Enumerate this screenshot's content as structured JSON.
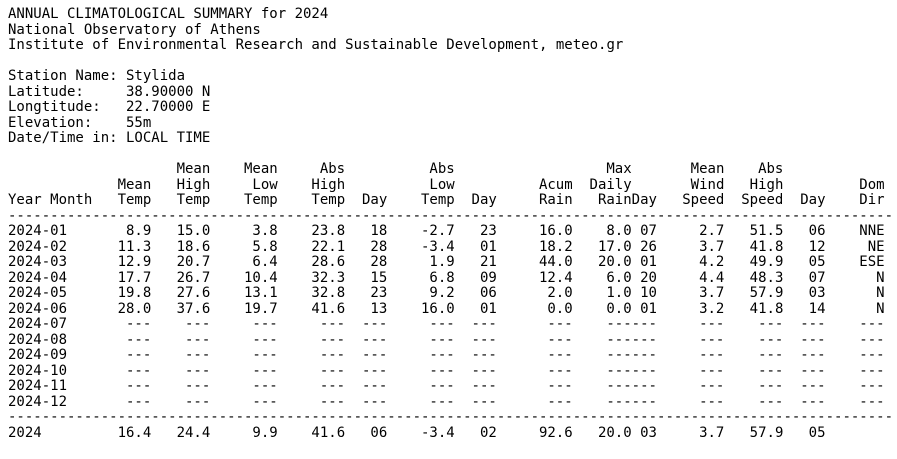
{
  "report": {
    "title": "ANNUAL CLIMATOLOGICAL SUMMARY for 2024",
    "organization": "National Observatory of Athens",
    "institute": "Institute of Environmental Research and Sustainable Development, meteo.gr"
  },
  "station": {
    "rows": [
      {
        "label": "Station Name:",
        "value": "Stylida"
      },
      {
        "label": "Latitude:",
        "value": "38.90000 N"
      },
      {
        "label": "Longtitude:",
        "value": "22.70000 E"
      },
      {
        "label": "Elevation:",
        "value": "55m"
      },
      {
        "label": "Date/Time in:",
        "value": "LOCAL TIME"
      }
    ]
  },
  "table": {
    "header": {
      "row1": [
        "",
        "",
        "Mean",
        "Mean",
        "Abs",
        "",
        "Abs",
        "",
        "",
        "Max",
        "",
        "Mean",
        "Abs",
        "",
        ""
      ],
      "row2": [
        "",
        "Mean",
        "High",
        "Low",
        "High",
        "",
        "Low",
        "",
        "Acum",
        "Daily",
        "",
        "Wind",
        "High",
        "",
        "Dom"
      ],
      "row3": [
        "Year Month",
        "Temp",
        "Temp",
        "Temp",
        "Temp",
        "Day",
        "Temp",
        "Day",
        "Rain",
        "Rain",
        "Day",
        "Speed",
        "Speed",
        "Day",
        "Dir"
      ]
    },
    "months": [
      [
        "2024-01",
        "8.9",
        "15.0",
        "3.8",
        "23.8",
        "18",
        "-2.7",
        "23",
        "16.0",
        "8.0",
        "07",
        "2.7",
        "51.5",
        "06",
        "NNE"
      ],
      [
        "2024-02",
        "11.3",
        "18.6",
        "5.8",
        "22.1",
        "28",
        "-3.4",
        "01",
        "18.2",
        "17.0",
        "26",
        "3.7",
        "41.8",
        "12",
        "NE"
      ],
      [
        "2024-03",
        "12.9",
        "20.7",
        "6.4",
        "28.6",
        "28",
        "1.9",
        "21",
        "44.0",
        "20.0",
        "01",
        "4.2",
        "49.9",
        "05",
        "ESE"
      ],
      [
        "2024-04",
        "17.7",
        "26.7",
        "10.4",
        "32.3",
        "15",
        "6.8",
        "09",
        "12.4",
        "6.0",
        "20",
        "4.4",
        "48.3",
        "07",
        "N"
      ],
      [
        "2024-05",
        "19.8",
        "27.6",
        "13.1",
        "32.8",
        "23",
        "9.2",
        "06",
        "2.0",
        "1.0",
        "10",
        "3.7",
        "57.9",
        "03",
        "N"
      ],
      [
        "2024-06",
        "28.0",
        "37.6",
        "19.7",
        "41.6",
        "13",
        "16.0",
        "01",
        "0.0",
        "0.0",
        "01",
        "3.2",
        "41.8",
        "14",
        "N"
      ],
      [
        "2024-07",
        "---",
        "---",
        "---",
        "---",
        "---",
        "---",
        "---",
        "---",
        "---",
        "---",
        "---",
        "---",
        "---",
        "---"
      ],
      [
        "2024-08",
        "---",
        "---",
        "---",
        "---",
        "---",
        "---",
        "---",
        "---",
        "---",
        "---",
        "---",
        "---",
        "---",
        "---"
      ],
      [
        "2024-09",
        "---",
        "---",
        "---",
        "---",
        "---",
        "---",
        "---",
        "---",
        "---",
        "---",
        "---",
        "---",
        "---",
        "---"
      ],
      [
        "2024-10",
        "---",
        "---",
        "---",
        "---",
        "---",
        "---",
        "---",
        "---",
        "---",
        "---",
        "---",
        "---",
        "---",
        "---"
      ],
      [
        "2024-11",
        "---",
        "---",
        "---",
        "---",
        "---",
        "---",
        "---",
        "---",
        "---",
        "---",
        "---",
        "---",
        "---",
        "---"
      ],
      [
        "2024-12",
        "---",
        "---",
        "---",
        "---",
        "---",
        "---",
        "---",
        "---",
        "---",
        "---",
        "---",
        "---",
        "---",
        "---"
      ]
    ],
    "annual": [
      "2024",
      "16.4",
      "24.4",
      "9.9",
      "41.6",
      "06",
      "-3.4",
      "02",
      "92.6",
      "20.0",
      "03",
      "3.7",
      "57.9",
      "05",
      ""
    ],
    "separator": "---------------------------------------------------------------------------------------------------------"
  }
}
